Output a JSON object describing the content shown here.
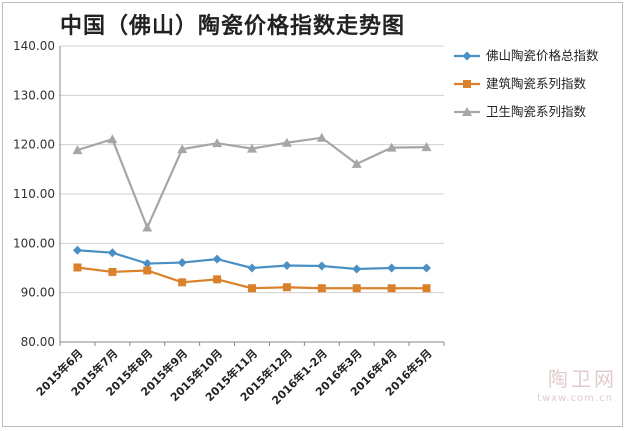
{
  "chart_data": {
    "type": "line",
    "title": "中国（佛山）陶瓷价格指数走势图",
    "categories": [
      "2015年6月",
      "2015年7月",
      "2015年8月",
      "2015年9月",
      "2015年10月",
      "2015年11月",
      "2015年12月",
      "2016年1-2月",
      "2016年3月",
      "2016年4月",
      "2016年5月"
    ],
    "ylim": [
      80,
      140
    ],
    "yticks": [
      "80.00",
      "90.00",
      "100.00",
      "110.00",
      "120.00",
      "130.00",
      "140.00"
    ],
    "grid": true,
    "legend_position": "top-right",
    "series": [
      {
        "name": "佛山陶瓷价格总指数",
        "color": "#4a90c4",
        "marker": "diamond",
        "values": [
          98.6,
          98.1,
          95.9,
          96.1,
          96.8,
          95.0,
          95.5,
          95.4,
          94.8,
          95.0,
          95.0
        ]
      },
      {
        "name": "建筑陶瓷系列指数",
        "color": "#d9822b",
        "marker": "square",
        "values": [
          95.1,
          94.2,
          94.5,
          92.1,
          92.7,
          90.9,
          91.1,
          90.9,
          90.9,
          90.9,
          90.9
        ]
      },
      {
        "name": "卫生陶瓷系列指数",
        "color": "#a6a6a6",
        "marker": "triangle",
        "values": [
          118.9,
          121.1,
          103.2,
          119.1,
          120.3,
          119.2,
          120.4,
          121.4,
          116.1,
          119.4,
          119.5
        ]
      }
    ]
  },
  "watermark": {
    "text": "陶卫网",
    "sub": "twxw.com.cn"
  }
}
